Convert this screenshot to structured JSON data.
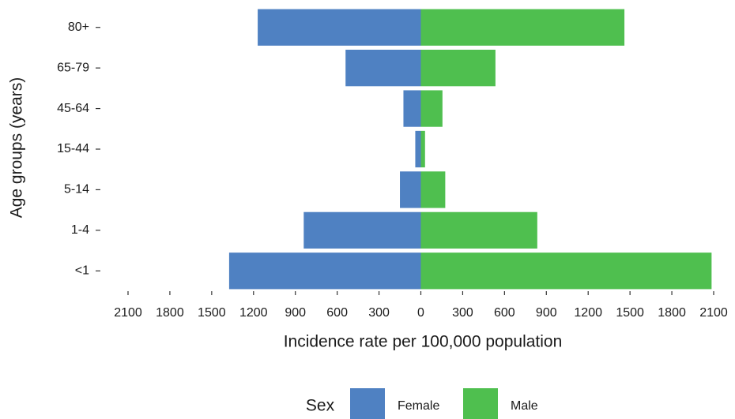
{
  "chart_data": {
    "type": "pyramid",
    "ylabel": "Age groups (years)",
    "xlabel": "Incidence rate per 100,000 population",
    "legend_title": "Sex",
    "legend_position": "bottom",
    "categories": [
      "80+",
      "65-79",
      "45-64",
      "15-44",
      "5-14",
      "1-4",
      "<1"
    ],
    "series": [
      {
        "name": "Female",
        "color": "#4f81c2",
        "values": [
          -1170,
          -540,
          -125,
          -40,
          -150,
          -840,
          -1375
        ]
      },
      {
        "name": "Male",
        "color": "#4fbf4f",
        "values": [
          1460,
          535,
          155,
          30,
          175,
          835,
          2085
        ]
      }
    ],
    "xlim": [
      -2100,
      2100
    ],
    "xticks": [
      {
        "value": -2100,
        "label": "2100"
      },
      {
        "value": -1800,
        "label": "1800"
      },
      {
        "value": -1500,
        "label": "1500"
      },
      {
        "value": -1200,
        "label": "1200"
      },
      {
        "value": -900,
        "label": "900"
      },
      {
        "value": -600,
        "label": "600"
      },
      {
        "value": -300,
        "label": "300"
      },
      0,
      300,
      600,
      900,
      1200,
      1500,
      1800,
      2100
    ],
    "grid": false
  }
}
